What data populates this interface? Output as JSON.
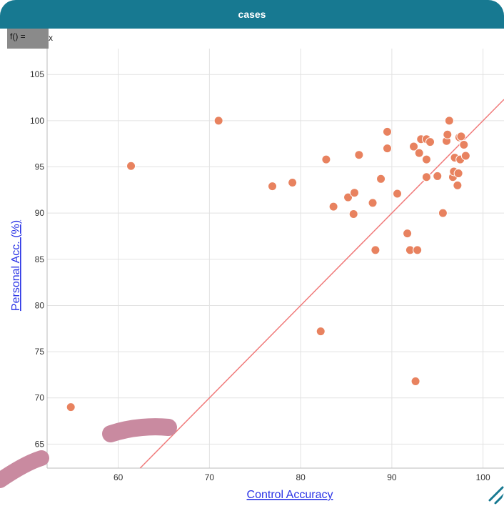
{
  "window": {
    "title": "cases"
  },
  "formula": {
    "label": "f() =",
    "value": "x"
  },
  "colors": {
    "titlebar": "#177991",
    "point": "#e8825f",
    "line": "#f07a7a",
    "axis_title": "#2b34e6",
    "grid": "#e2e2e2",
    "highlight": "#c98aa0"
  },
  "chart_data": {
    "type": "scatter",
    "xlabel": "Control Accuracy",
    "ylabel": "Personal Acc. (%)",
    "xlim": [
      52.2,
      102.3
    ],
    "ylim": [
      62.4,
      107.8
    ],
    "xticks": [
      60,
      70,
      80,
      90,
      100
    ],
    "yticks": [
      65,
      70,
      75,
      80,
      85,
      90,
      95,
      100,
      105
    ],
    "grid": true,
    "reference_line": {
      "label": "y = x"
    },
    "points": [
      {
        "x": 54.8,
        "y": 69.0
      },
      {
        "x": 61.4,
        "y": 95.1
      },
      {
        "x": 71.0,
        "y": 100.0
      },
      {
        "x": 76.9,
        "y": 92.9
      },
      {
        "x": 79.1,
        "y": 93.3
      },
      {
        "x": 82.2,
        "y": 77.2
      },
      {
        "x": 82.8,
        "y": 95.8
      },
      {
        "x": 83.6,
        "y": 90.7
      },
      {
        "x": 85.2,
        "y": 91.7
      },
      {
        "x": 85.8,
        "y": 89.9
      },
      {
        "x": 85.9,
        "y": 92.2
      },
      {
        "x": 86.4,
        "y": 96.3
      },
      {
        "x": 87.9,
        "y": 91.1
      },
      {
        "x": 88.2,
        "y": 86.0
      },
      {
        "x": 88.8,
        "y": 93.7
      },
      {
        "x": 89.5,
        "y": 98.8
      },
      {
        "x": 89.5,
        "y": 97.0
      },
      {
        "x": 90.6,
        "y": 92.1
      },
      {
        "x": 91.7,
        "y": 87.8
      },
      {
        "x": 92.0,
        "y": 86.0
      },
      {
        "x": 92.4,
        "y": 97.2
      },
      {
        "x": 92.6,
        "y": 71.8
      },
      {
        "x": 92.8,
        "y": 86.0
      },
      {
        "x": 93.0,
        "y": 96.5
      },
      {
        "x": 93.2,
        "y": 98.0
      },
      {
        "x": 93.8,
        "y": 95.8
      },
      {
        "x": 93.8,
        "y": 93.9
      },
      {
        "x": 93.8,
        "y": 98.0
      },
      {
        "x": 94.2,
        "y": 97.7
      },
      {
        "x": 95.0,
        "y": 94.0
      },
      {
        "x": 95.6,
        "y": 90.0
      },
      {
        "x": 96.0,
        "y": 97.8
      },
      {
        "x": 96.1,
        "y": 98.5
      },
      {
        "x": 96.3,
        "y": 100.0
      },
      {
        "x": 96.7,
        "y": 93.9
      },
      {
        "x": 96.8,
        "y": 94.5
      },
      {
        "x": 96.9,
        "y": 96.0
      },
      {
        "x": 97.2,
        "y": 93.0
      },
      {
        "x": 97.3,
        "y": 94.3
      },
      {
        "x": 97.4,
        "y": 98.2
      },
      {
        "x": 97.5,
        "y": 95.8
      },
      {
        "x": 97.6,
        "y": 98.3
      },
      {
        "x": 97.9,
        "y": 97.4
      },
      {
        "x": 98.1,
        "y": 96.2
      }
    ]
  }
}
